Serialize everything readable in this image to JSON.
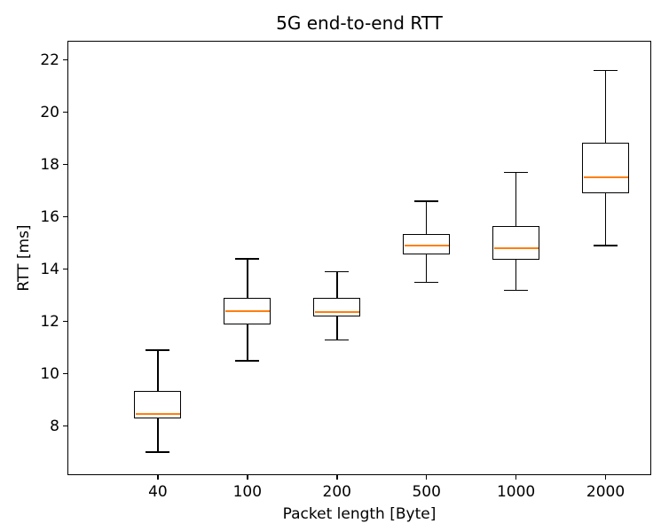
{
  "chart_data": {
    "type": "boxplot",
    "title": "5G end-to-end RTT",
    "xlabel": "Packet length [Byte]",
    "ylabel": "RTT [ms]",
    "categories": [
      "40",
      "100",
      "200",
      "500",
      "1000",
      "2000"
    ],
    "boxes": [
      {
        "category": "40",
        "whislo": 7.0,
        "q1": 8.3,
        "med": 8.45,
        "q3": 9.35,
        "whishi": 10.9
      },
      {
        "category": "100",
        "whislo": 10.5,
        "q1": 11.9,
        "med": 12.4,
        "q3": 12.9,
        "whishi": 14.4
      },
      {
        "category": "200",
        "whislo": 11.3,
        "q1": 12.2,
        "med": 12.35,
        "q3": 12.9,
        "whishi": 13.9
      },
      {
        "category": "500",
        "whislo": 13.5,
        "q1": 14.55,
        "med": 14.9,
        "q3": 15.35,
        "whishi": 16.6
      },
      {
        "category": "1000",
        "whislo": 13.2,
        "q1": 14.35,
        "med": 14.8,
        "q3": 15.65,
        "whishi": 17.7
      },
      {
        "category": "2000",
        "whislo": 14.9,
        "q1": 16.9,
        "med": 17.5,
        "q3": 18.85,
        "whishi": 21.6
      }
    ],
    "yticks": [
      8,
      10,
      12,
      14,
      16,
      18,
      20,
      22
    ],
    "ylim": [
      6.16,
      22.7
    ],
    "x_slots": 6.5,
    "grid": false,
    "legend": null,
    "colors": {
      "line": "#000000",
      "median": "#ff7f0e",
      "background": "#ffffff"
    }
  }
}
